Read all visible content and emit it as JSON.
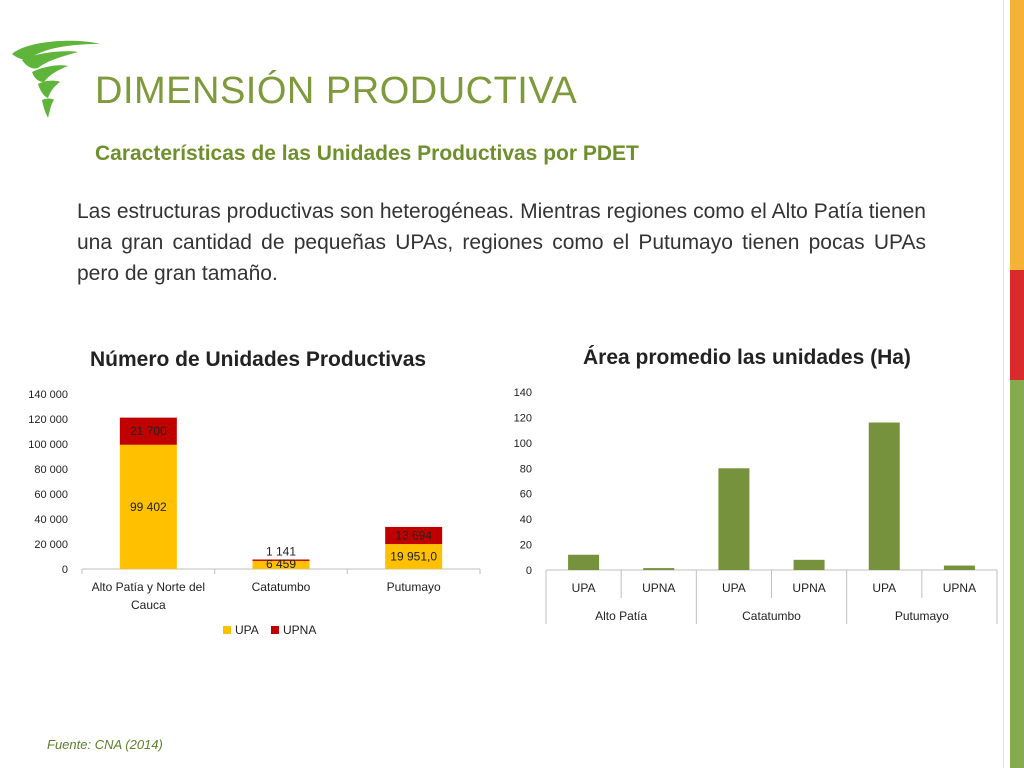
{
  "slide": {
    "title": "DIMENSIÓN PRODUCTIVA",
    "subtitle": "Características de las Unidades Productivas por PDET",
    "body": "Las estructuras productivas son heterogéneas. Mientras regiones como el Alto Patía tienen una gran cantidad de pequeñas UPAs, regiones como el Putumayo tienen pocas UPAs pero de gran tamaño.",
    "source": "Fuente: CNA (2014)"
  },
  "colors": {
    "title": "#7f9a3a",
    "subtitle": "#6f8f2c",
    "logo": "#5fb43a",
    "stripe_top": "#f5b335",
    "stripe_mid": "#d92b2b",
    "stripe_bottom": "#86aa4f",
    "upa": "#ffc000",
    "upna": "#c00000",
    "area_bar": "#76923c",
    "source": "#5c7f2a"
  },
  "chart_data": [
    {
      "type": "bar",
      "stacked": true,
      "title": "Número de Unidades Productivas",
      "categories": [
        "Alto Patía y Norte del Cauca",
        "Catatumbo",
        "Putumayo"
      ],
      "category_lines": [
        [
          "Alto Patía y Norte del",
          "Cauca"
        ],
        [
          "Catatumbo"
        ],
        [
          "Putumayo"
        ]
      ],
      "series": [
        {
          "name": "UPA",
          "values": [
            99402,
            6459,
            19951
          ],
          "labels": [
            "99 402",
            "6 459",
            "19 951,0"
          ]
        },
        {
          "name": "UPNA",
          "values": [
            21700,
            1141,
            13694
          ],
          "labels": [
            "21 700",
            "1 141",
            "13 694"
          ]
        }
      ],
      "ylim": [
        0,
        140000
      ],
      "yticks": [
        0,
        20000,
        40000,
        60000,
        80000,
        100000,
        120000,
        140000
      ],
      "ytick_labels": [
        "0",
        "20 000",
        "40 000",
        "60 000",
        "80 000",
        "100 000",
        "120 000",
        "140 000"
      ],
      "legend": "bottom",
      "grid": false
    },
    {
      "type": "bar",
      "title": "Área promedio las unidades (Ha)",
      "categories": [
        "UPA",
        "UPNA",
        "UPA",
        "UPNA",
        "UPA",
        "UPNA"
      ],
      "groups": [
        "Alto Patía",
        "Catatumbo",
        "Putumayo"
      ],
      "values": [
        12,
        1.5,
        80,
        8,
        116,
        3.5
      ],
      "ylim": [
        0,
        140
      ],
      "yticks": [
        0,
        20,
        40,
        60,
        80,
        100,
        120,
        140
      ],
      "ytick_labels": [
        "0",
        "20",
        "40",
        "60",
        "80",
        "100",
        "120",
        "140"
      ],
      "grid": false
    }
  ]
}
